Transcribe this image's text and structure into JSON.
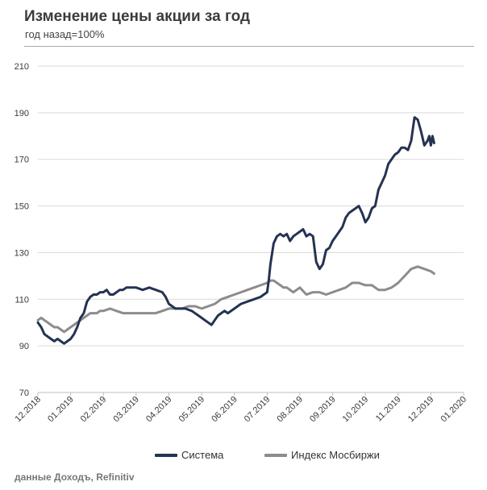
{
  "header": {
    "title": "Изменение цены акции за год",
    "subtitle": "год назад=100%"
  },
  "source_note": "данные Доходъ, Refinitiv",
  "colors": {
    "sistema": "#243352",
    "index": "#8c8c8c",
    "grid": "#d9d9d9",
    "rule": "#a9a9a9"
  },
  "chart_data": {
    "type": "line",
    "title": "Изменение цены акции за год",
    "subtitle": "год назад=100%",
    "ylim": [
      70,
      210
    ],
    "yticks": [
      70,
      90,
      110,
      130,
      150,
      170,
      190,
      210
    ],
    "x_tick_labels": [
      "12.2018",
      "01.2019",
      "02.2019",
      "03.2019",
      "04.2019",
      "05.2019",
      "06.2019",
      "07.2019",
      "08.2019",
      "09.2019",
      "10.2019",
      "11.2019",
      "12.2019",
      "01.2020"
    ],
    "x_range": [
      0,
      13
    ],
    "legend_position": "bottom",
    "grid": "horizontal",
    "series": [
      {
        "name": "Система",
        "color": "#243352",
        "x": [
          0,
          0.1,
          0.2,
          0.3,
          0.4,
          0.5,
          0.6,
          0.7,
          0.8,
          0.9,
          1.0,
          1.1,
          1.2,
          1.3,
          1.4,
          1.5,
          1.6,
          1.7,
          1.8,
          1.9,
          2.0,
          2.1,
          2.2,
          2.3,
          2.4,
          2.5,
          2.6,
          2.7,
          2.8,
          2.9,
          3.0,
          3.2,
          3.4,
          3.6,
          3.8,
          3.9,
          4.0,
          4.1,
          4.2,
          4.3,
          4.5,
          4.7,
          4.9,
          5.0,
          5.1,
          5.2,
          5.3,
          5.4,
          5.5,
          5.6,
          5.7,
          5.8,
          6.0,
          6.2,
          6.4,
          6.6,
          6.8,
          6.9,
          7.0,
          7.05,
          7.1,
          7.2,
          7.3,
          7.4,
          7.5,
          7.6,
          7.7,
          7.8,
          7.9,
          8.0,
          8.1,
          8.2,
          8.3,
          8.4,
          8.5,
          8.6,
          8.7,
          8.8,
          8.9,
          9.0,
          9.1,
          9.2,
          9.3,
          9.4,
          9.5,
          9.6,
          9.7,
          9.8,
          9.9,
          10.0,
          10.1,
          10.2,
          10.3,
          10.4,
          10.5,
          10.6,
          10.7,
          10.8,
          10.9,
          11.0,
          11.1,
          11.2,
          11.3,
          11.4,
          11.5,
          11.6,
          11.7,
          11.8,
          11.9,
          11.95,
          12.0,
          12.05,
          12.1
        ],
        "values": [
          100,
          98,
          95,
          94,
          93,
          92,
          93,
          92,
          91,
          92,
          93,
          95,
          98,
          102,
          104,
          109,
          111,
          112,
          112,
          113,
          113,
          114,
          112,
          112,
          113,
          114,
          114,
          115,
          115,
          115,
          115,
          114,
          115,
          114,
          113,
          111,
          108,
          107,
          106,
          106,
          106,
          105,
          103,
          102,
          101,
          100,
          99,
          101,
          103,
          104,
          105,
          104,
          106,
          108,
          109,
          110,
          111,
          112,
          113,
          118,
          125,
          134,
          137,
          138,
          137,
          138,
          135,
          137,
          138,
          139,
          140,
          137,
          138,
          137,
          126,
          123,
          125,
          131,
          132,
          135,
          137,
          139,
          141,
          145,
          147,
          148,
          149,
          150,
          147,
          143,
          145,
          149,
          150,
          157,
          160,
          163,
          168,
          170,
          172,
          173,
          175,
          175,
          174,
          178,
          188,
          187,
          182,
          176,
          178,
          180,
          176,
          180,
          177
        ]
      },
      {
        "name": "Индекс Мосбиржи",
        "color": "#8c8c8c",
        "x": [
          0,
          0.1,
          0.2,
          0.3,
          0.4,
          0.5,
          0.6,
          0.7,
          0.8,
          0.9,
          1.0,
          1.1,
          1.2,
          1.3,
          1.4,
          1.5,
          1.6,
          1.7,
          1.8,
          1.9,
          2.0,
          2.2,
          2.4,
          2.6,
          2.8,
          3.0,
          3.2,
          3.4,
          3.6,
          3.8,
          4.0,
          4.2,
          4.4,
          4.6,
          4.8,
          5.0,
          5.2,
          5.4,
          5.6,
          5.8,
          6.0,
          6.2,
          6.4,
          6.6,
          6.8,
          7.0,
          7.1,
          7.2,
          7.3,
          7.4,
          7.5,
          7.6,
          7.7,
          7.8,
          7.9,
          8.0,
          8.2,
          8.4,
          8.6,
          8.8,
          9.0,
          9.2,
          9.4,
          9.6,
          9.8,
          10.0,
          10.2,
          10.4,
          10.6,
          10.8,
          11.0,
          11.2,
          11.4,
          11.6,
          11.8,
          12.0,
          12.1
        ],
        "values": [
          101,
          102,
          101,
          100,
          99,
          98,
          98,
          97,
          96,
          97,
          98,
          99,
          100,
          101,
          102,
          103,
          104,
          104,
          104,
          105,
          105,
          106,
          105,
          104,
          104,
          104,
          104,
          104,
          104,
          105,
          106,
          106,
          106,
          107,
          107,
          106,
          107,
          108,
          110,
          111,
          112,
          113,
          114,
          115,
          116,
          117,
          118,
          118,
          117,
          116,
          115,
          115,
          114,
          113,
          114,
          115,
          112,
          113,
          113,
          112,
          113,
          114,
          115,
          117,
          117,
          116,
          116,
          114,
          114,
          115,
          117,
          120,
          123,
          124,
          123,
          122,
          121
        ]
      }
    ]
  }
}
